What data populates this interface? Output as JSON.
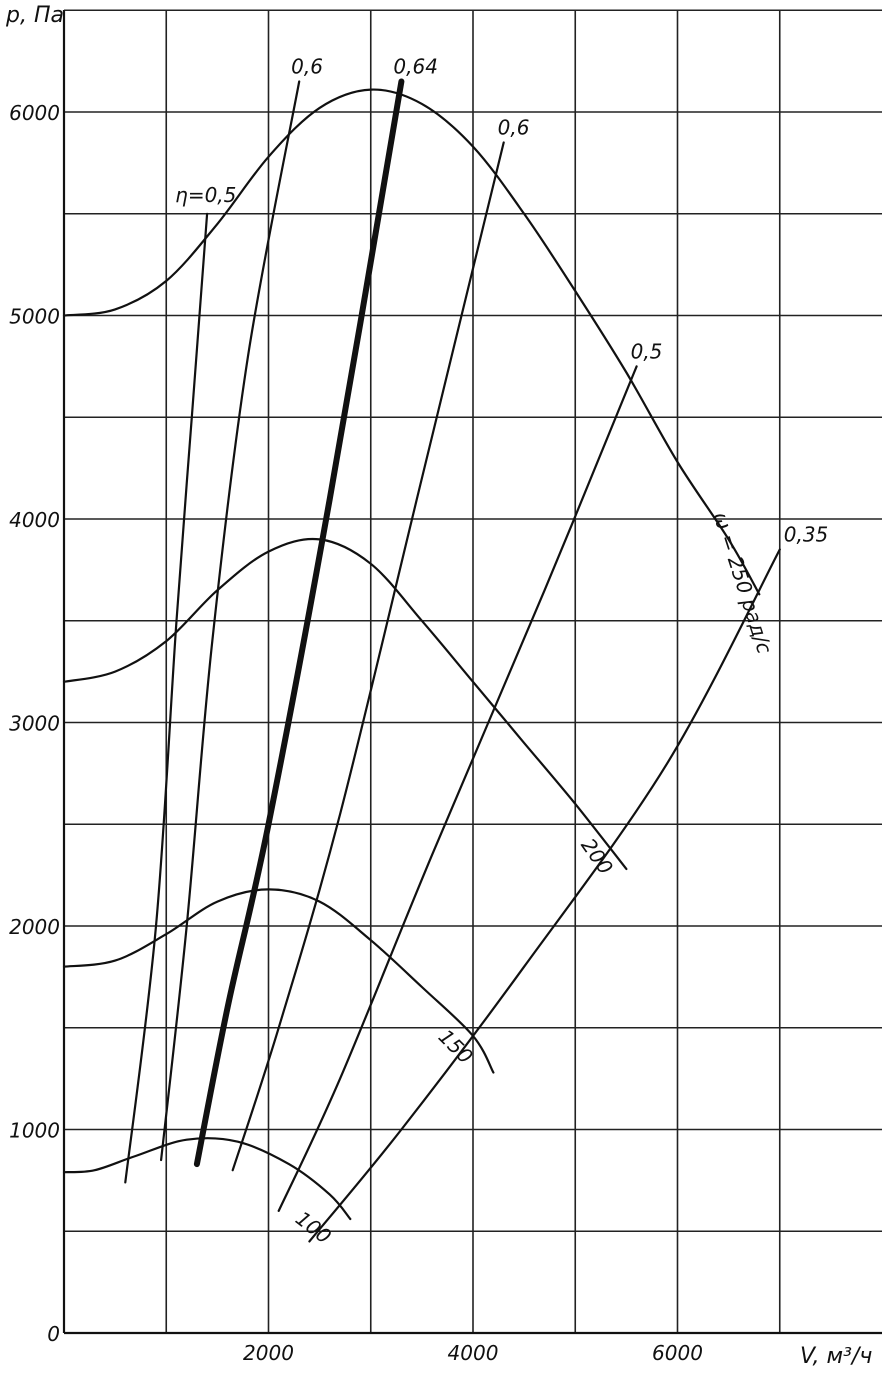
{
  "chart_data": {
    "type": "line",
    "xlabel": "V, м³/ч",
    "ylabel": "p, Па",
    "xlim": [
      0,
      8000
    ],
    "ylim": [
      0,
      6000
    ],
    "x_ticks": [
      2000,
      4000,
      6000
    ],
    "y_ticks": [
      0,
      1000,
      2000,
      3000,
      4000,
      5000,
      6000
    ],
    "x_tick_labels": [
      "2000",
      "4000",
      "6000"
    ],
    "y_tick_labels": [
      "0",
      "1000",
      "2000",
      "3000",
      "4000",
      "5000",
      "6000"
    ],
    "grid": true,
    "pressure_curves": [
      {
        "label": "ω = 250 рад/с",
        "points": [
          [
            0,
            5000
          ],
          [
            500,
            5030
          ],
          [
            1000,
            5170
          ],
          [
            1500,
            5450
          ],
          [
            2000,
            5780
          ],
          [
            2500,
            6020
          ],
          [
            3000,
            6110
          ],
          [
            3500,
            6040
          ],
          [
            4000,
            5830
          ],
          [
            4500,
            5500
          ],
          [
            5000,
            5120
          ],
          [
            5500,
            4720
          ],
          [
            6000,
            4280
          ],
          [
            6500,
            3900
          ],
          [
            6800,
            3630
          ]
        ]
      },
      {
        "label": "200",
        "points": [
          [
            0,
            3200
          ],
          [
            500,
            3250
          ],
          [
            1000,
            3400
          ],
          [
            1500,
            3650
          ],
          [
            2000,
            3840
          ],
          [
            2500,
            3900
          ],
          [
            3000,
            3780
          ],
          [
            3500,
            3500
          ],
          [
            4000,
            3200
          ],
          [
            4500,
            2900
          ],
          [
            5000,
            2600
          ],
          [
            5500,
            2280
          ]
        ]
      },
      {
        "label": "150",
        "points": [
          [
            0,
            1800
          ],
          [
            500,
            1830
          ],
          [
            1000,
            1960
          ],
          [
            1500,
            2120
          ],
          [
            2000,
            2180
          ],
          [
            2500,
            2120
          ],
          [
            3000,
            1930
          ],
          [
            3500,
            1700
          ],
          [
            4000,
            1460
          ],
          [
            4200,
            1280
          ]
        ]
      },
      {
        "label": "100",
        "points": [
          [
            0,
            790
          ],
          [
            300,
            800
          ],
          [
            700,
            870
          ],
          [
            1200,
            950
          ],
          [
            1700,
            940
          ],
          [
            2200,
            830
          ],
          [
            2600,
            680
          ],
          [
            2800,
            560
          ]
        ]
      }
    ],
    "efficiency_curves": [
      {
        "label": "η=0,5",
        "points": [
          [
            600,
            740
          ],
          [
            900,
            2000
          ],
          [
            1100,
            3500
          ],
          [
            1250,
            4500
          ],
          [
            1400,
            5500
          ]
        ]
      },
      {
        "label": "0,6",
        "points": [
          [
            950,
            850
          ],
          [
            1200,
            2000
          ],
          [
            1450,
            3400
          ],
          [
            1800,
            4800
          ],
          [
            2300,
            6150
          ]
        ]
      },
      {
        "label": "0,64",
        "points": [
          [
            1300,
            830
          ],
          [
            1600,
            1600
          ],
          [
            2000,
            2500
          ],
          [
            2600,
            4100
          ],
          [
            3300,
            6150
          ]
        ]
      },
      {
        "label": "0,6",
        "points": [
          [
            1650,
            800
          ],
          [
            2100,
            1500
          ],
          [
            2700,
            2550
          ],
          [
            3500,
            4200
          ],
          [
            4300,
            5850
          ]
        ]
      },
      {
        "label": "0,5",
        "points": [
          [
            2100,
            600
          ],
          [
            2700,
            1250
          ],
          [
            3600,
            2350
          ],
          [
            4700,
            3650
          ],
          [
            5600,
            4750
          ]
        ]
      },
      {
        "label": "0,35",
        "points": [
          [
            2400,
            450
          ],
          [
            3300,
            1000
          ],
          [
            4500,
            1800
          ],
          [
            5900,
            2800
          ],
          [
            7000,
            3850
          ]
        ]
      }
    ]
  }
}
